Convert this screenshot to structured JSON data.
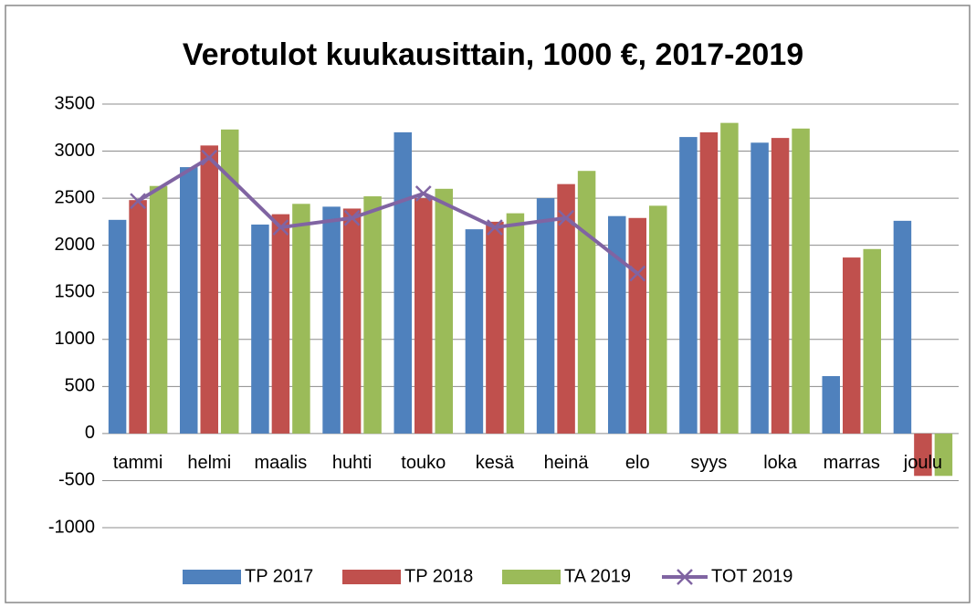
{
  "chart_data": {
    "type": "bar",
    "title": "Verotulot kuukausittain, 1000 €, 2017-2019",
    "categories": [
      "tammi",
      "helmi",
      "maalis",
      "huhti",
      "touko",
      "kesä",
      "heinä",
      "elo",
      "syys",
      "loka",
      "marras",
      "joulu"
    ],
    "series": [
      {
        "name": "TP 2017",
        "type": "bar",
        "color": "#4f81bd",
        "values": [
          2270,
          2830,
          2220,
          2410,
          3200,
          2170,
          2500,
          2310,
          3150,
          3090,
          610,
          2260
        ]
      },
      {
        "name": "TP 2018",
        "type": "bar",
        "color": "#c0504d",
        "values": [
          2480,
          3060,
          2330,
          2390,
          2500,
          2250,
          2650,
          2290,
          3200,
          3140,
          1870,
          -450
        ]
      },
      {
        "name": "TA 2019",
        "type": "bar",
        "color": "#9bbb59",
        "values": [
          2630,
          3230,
          2440,
          2520,
          2600,
          2340,
          2790,
          2420,
          3300,
          3240,
          1960,
          -450
        ]
      },
      {
        "name": "TOT 2019",
        "type": "line",
        "color": "#8064a2",
        "values": [
          2470,
          2930,
          2190,
          2290,
          2550,
          2190,
          2290,
          1700,
          null,
          null,
          null,
          null
        ]
      }
    ],
    "ylim": [
      -1000,
      3500
    ],
    "yticks": [
      -1000,
      -500,
      0,
      500,
      1000,
      1500,
      2000,
      2500,
      3000,
      3500
    ],
    "grid": true,
    "legend": "bottom"
  }
}
